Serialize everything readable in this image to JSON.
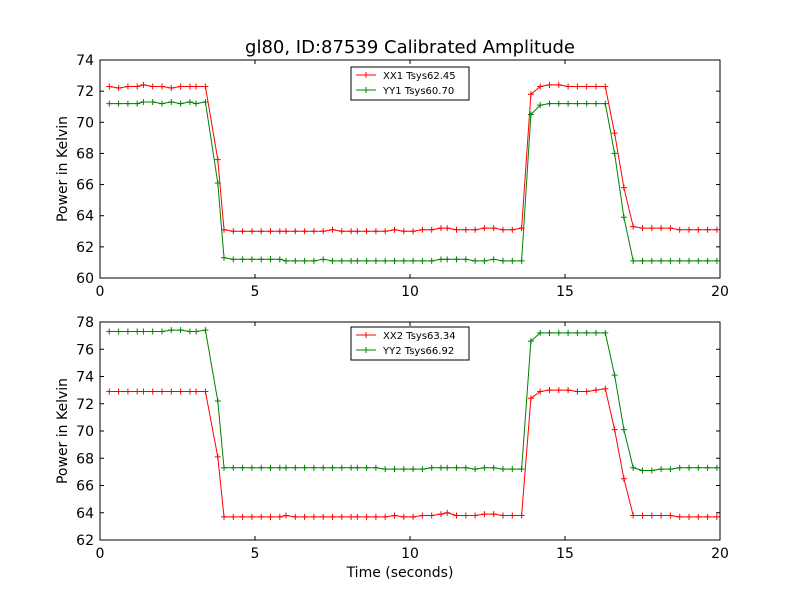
{
  "figure": {
    "title": "gl80, ID:87539 Calibrated Amplitude"
  },
  "colors": {
    "red": "#ff0000",
    "green": "#008000"
  },
  "chart_data": [
    {
      "type": "line",
      "title": "gl80, ID:87539 Calibrated Amplitude",
      "xlabel": "",
      "ylabel": "Power in Kelvin",
      "xlim": [
        0,
        20
      ],
      "ylim": [
        60,
        74
      ],
      "xticks": [
        0,
        5,
        10,
        15,
        20
      ],
      "yticks": [
        60,
        62,
        64,
        66,
        68,
        70,
        72,
        74
      ],
      "grid": false,
      "legend": "top-center",
      "x": [
        0.3,
        0.6,
        0.9,
        1.2,
        1.4,
        1.7,
        2.0,
        2.3,
        2.6,
        2.9,
        3.1,
        3.4,
        3.8,
        4.0,
        4.3,
        4.6,
        4.9,
        5.2,
        5.5,
        5.8,
        6.0,
        6.3,
        6.6,
        6.9,
        7.2,
        7.5,
        7.8,
        8.1,
        8.3,
        8.6,
        8.9,
        9.2,
        9.5,
        9.8,
        10.1,
        10.4,
        10.7,
        11.0,
        11.2,
        11.5,
        11.8,
        12.1,
        12.4,
        12.7,
        13.0,
        13.3,
        13.6,
        13.9,
        14.2,
        14.5,
        14.8,
        15.1,
        15.4,
        15.7,
        16.0,
        16.3,
        16.6,
        16.9,
        17.2,
        17.5,
        17.8,
        18.1,
        18.4,
        18.7,
        19.0,
        19.3,
        19.6,
        19.9
      ],
      "series": [
        {
          "name": "XX1 Tsys62.45",
          "color": "red",
          "values": [
            72.3,
            72.2,
            72.3,
            72.3,
            72.4,
            72.3,
            72.3,
            72.2,
            72.3,
            72.3,
            72.3,
            72.3,
            67.6,
            63.1,
            63.0,
            63.0,
            63.0,
            63.0,
            63.0,
            63.0,
            63.0,
            63.0,
            63.0,
            63.0,
            63.0,
            63.1,
            63.0,
            63.0,
            63.0,
            63.0,
            63.0,
            63.0,
            63.1,
            63.0,
            63.0,
            63.1,
            63.1,
            63.2,
            63.2,
            63.1,
            63.1,
            63.1,
            63.2,
            63.2,
            63.1,
            63.1,
            63.2,
            71.8,
            72.3,
            72.4,
            72.4,
            72.3,
            72.3,
            72.3,
            72.3,
            72.3,
            69.3,
            65.8,
            63.3,
            63.2,
            63.2,
            63.2,
            63.2,
            63.1,
            63.1,
            63.1,
            63.1,
            63.1
          ]
        },
        {
          "name": "YY1 Tsys60.70",
          "color": "green",
          "values": [
            71.2,
            71.2,
            71.2,
            71.2,
            71.3,
            71.3,
            71.2,
            71.3,
            71.2,
            71.3,
            71.2,
            71.3,
            66.1,
            61.3,
            61.2,
            61.2,
            61.2,
            61.2,
            61.2,
            61.2,
            61.1,
            61.1,
            61.1,
            61.1,
            61.2,
            61.1,
            61.1,
            61.1,
            61.1,
            61.1,
            61.1,
            61.1,
            61.1,
            61.1,
            61.1,
            61.1,
            61.1,
            61.2,
            61.2,
            61.2,
            61.2,
            61.1,
            61.1,
            61.2,
            61.1,
            61.1,
            61.1,
            70.5,
            71.1,
            71.2,
            71.2,
            71.2,
            71.2,
            71.2,
            71.2,
            71.2,
            68.0,
            63.9,
            61.1,
            61.1,
            61.1,
            61.1,
            61.1,
            61.1,
            61.1,
            61.1,
            61.1,
            61.1
          ]
        }
      ]
    },
    {
      "type": "line",
      "title": "",
      "xlabel": "Time (seconds)",
      "ylabel": "Power in Kelvin",
      "xlim": [
        0,
        20
      ],
      "ylim": [
        62,
        78
      ],
      "xticks": [
        0,
        5,
        10,
        15,
        20
      ],
      "yticks": [
        62,
        64,
        66,
        68,
        70,
        72,
        74,
        76,
        78
      ],
      "grid": false,
      "legend": "top-center",
      "x": [
        0.3,
        0.6,
        0.9,
        1.2,
        1.4,
        1.7,
        2.0,
        2.3,
        2.6,
        2.9,
        3.1,
        3.4,
        3.8,
        4.0,
        4.3,
        4.6,
        4.9,
        5.2,
        5.5,
        5.8,
        6.0,
        6.3,
        6.6,
        6.9,
        7.2,
        7.5,
        7.8,
        8.1,
        8.3,
        8.6,
        8.9,
        9.2,
        9.5,
        9.8,
        10.1,
        10.4,
        10.7,
        11.0,
        11.2,
        11.5,
        11.8,
        12.1,
        12.4,
        12.7,
        13.0,
        13.3,
        13.6,
        13.9,
        14.2,
        14.5,
        14.8,
        15.1,
        15.4,
        15.7,
        16.0,
        16.3,
        16.6,
        16.9,
        17.2,
        17.5,
        17.8,
        18.1,
        18.4,
        18.7,
        19.0,
        19.3,
        19.6,
        19.9
      ],
      "series": [
        {
          "name": "XX2 Tsys63.34",
          "color": "red",
          "values": [
            72.9,
            72.9,
            72.9,
            72.9,
            72.9,
            72.9,
            72.9,
            72.9,
            72.9,
            72.9,
            72.9,
            72.9,
            68.1,
            63.7,
            63.7,
            63.7,
            63.7,
            63.7,
            63.7,
            63.7,
            63.8,
            63.7,
            63.7,
            63.7,
            63.7,
            63.7,
            63.7,
            63.7,
            63.7,
            63.7,
            63.7,
            63.7,
            63.8,
            63.7,
            63.7,
            63.8,
            63.8,
            63.9,
            64.0,
            63.8,
            63.8,
            63.8,
            63.9,
            63.9,
            63.8,
            63.8,
            63.8,
            72.4,
            72.9,
            73.0,
            73.0,
            73.0,
            72.9,
            72.9,
            73.0,
            73.1,
            70.1,
            66.5,
            63.8,
            63.8,
            63.8,
            63.8,
            63.8,
            63.7,
            63.7,
            63.7,
            63.7,
            63.7
          ]
        },
        {
          "name": "YY2 Tsys66.92",
          "color": "green",
          "values": [
            77.3,
            77.3,
            77.3,
            77.3,
            77.3,
            77.3,
            77.3,
            77.4,
            77.4,
            77.3,
            77.3,
            77.4,
            72.2,
            67.3,
            67.3,
            67.3,
            67.3,
            67.3,
            67.3,
            67.3,
            67.3,
            67.3,
            67.3,
            67.3,
            67.3,
            67.3,
            67.3,
            67.3,
            67.3,
            67.3,
            67.3,
            67.2,
            67.2,
            67.2,
            67.2,
            67.2,
            67.3,
            67.3,
            67.3,
            67.3,
            67.3,
            67.2,
            67.3,
            67.3,
            67.2,
            67.2,
            67.2,
            76.6,
            77.2,
            77.2,
            77.2,
            77.2,
            77.2,
            77.2,
            77.2,
            77.2,
            74.1,
            70.1,
            67.3,
            67.1,
            67.1,
            67.2,
            67.2,
            67.3,
            67.3,
            67.3,
            67.3,
            67.3
          ]
        }
      ]
    }
  ]
}
